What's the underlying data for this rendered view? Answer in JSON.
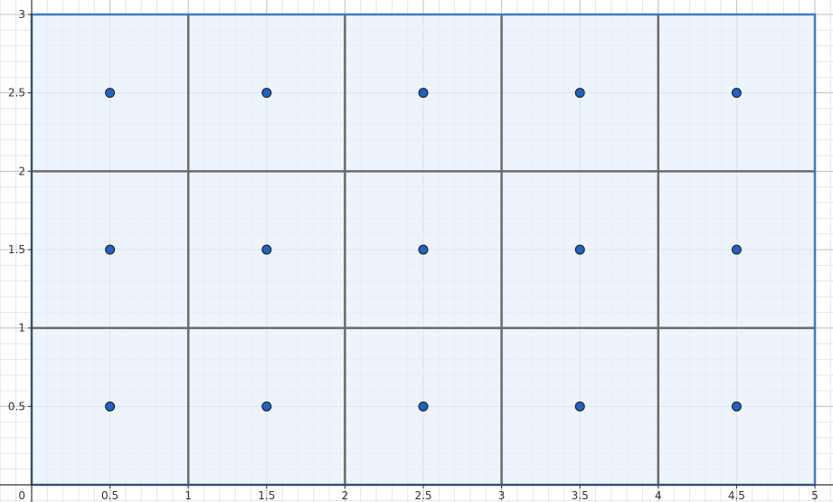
{
  "chart_data": {
    "type": "scatter",
    "title": "",
    "xlabel": "",
    "ylabel": "",
    "xlim": [
      0,
      5
    ],
    "ylim": [
      0,
      3
    ],
    "grid": true,
    "minor_grid_step": 0.1,
    "major_grid_step": 0.5,
    "x_ticks": [
      "0.5",
      "1",
      "1.5",
      "2",
      "2.5",
      "3",
      "3.5",
      "4",
      "4.5",
      "5"
    ],
    "y_ticks": [
      "0.5",
      "1",
      "1.5",
      "2",
      "2.5",
      "3"
    ],
    "origin_label": "0",
    "region": {
      "x": [
        0,
        5
      ],
      "y": [
        0,
        3
      ],
      "fill": "#e8f0fb",
      "stroke": "#3f7cc4"
    },
    "cells": {
      "cols": 5,
      "rows": 3,
      "line_color": "#6b6b6b"
    },
    "series": [
      {
        "points": [
          [
            0.5,
            2.5
          ],
          [
            1.5,
            2.5
          ],
          [
            2.5,
            2.5
          ],
          [
            3.5,
            2.5
          ],
          [
            4.5,
            2.5
          ],
          [
            0.5,
            1.5
          ],
          [
            1.5,
            1.5
          ],
          [
            2.5,
            1.5
          ],
          [
            3.5,
            1.5
          ],
          [
            4.5,
            1.5
          ],
          [
            0.5,
            0.5
          ],
          [
            1.5,
            0.5
          ],
          [
            2.5,
            0.5
          ],
          [
            3.5,
            0.5
          ],
          [
            4.5,
            0.5
          ]
        ],
        "color": "#1f63bf"
      }
    ]
  }
}
